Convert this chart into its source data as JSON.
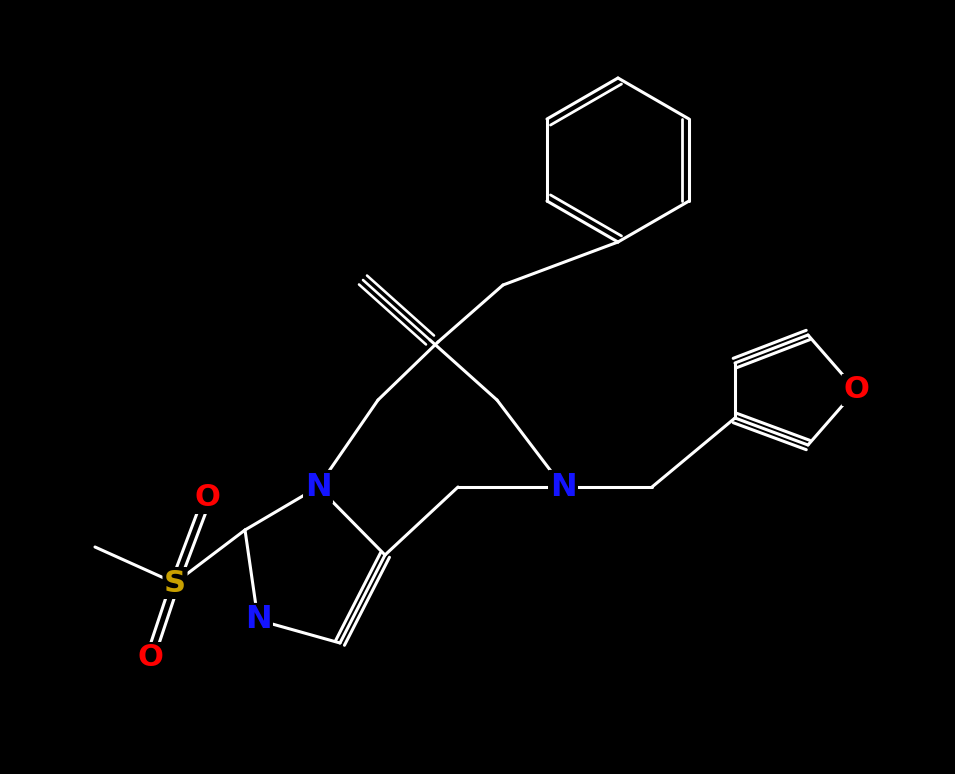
{
  "background_color": "#000000",
  "bond_color": "#ffffff",
  "atom_colors": {
    "N": "#1414ff",
    "O": "#ff0000",
    "S": "#c8a000",
    "C": "#ffffff"
  },
  "bond_width": 2.2,
  "font_size": 22
}
